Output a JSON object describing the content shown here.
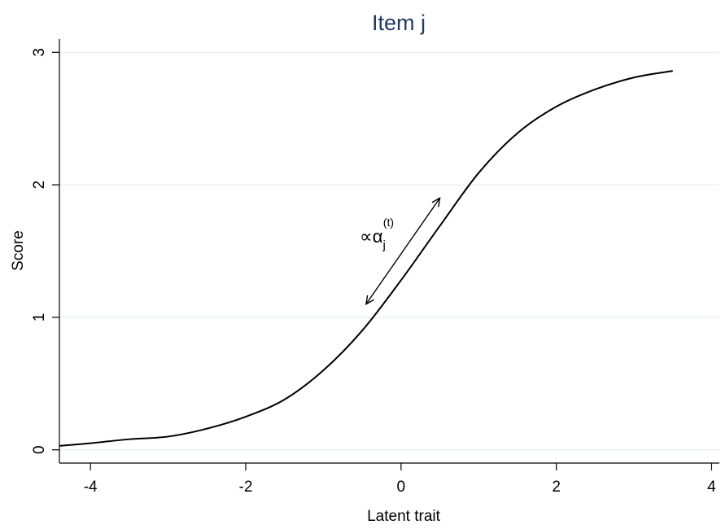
{
  "chart_data": {
    "type": "line",
    "title": "Item j",
    "xlabel": "Latent trait",
    "ylabel": "Score",
    "xlim": [
      -4.4,
      4.1
    ],
    "ylim": [
      -0.1,
      3.1
    ],
    "x_ticks": [
      "-4",
      "-2",
      "0",
      "2",
      "4"
    ],
    "y_ticks": [
      "0",
      "1",
      "2",
      "3"
    ],
    "grid": "horizontal",
    "series": [
      {
        "x": [
          -4.4,
          -4.0,
          -3.5,
          -3.0,
          -2.5,
          -2.0,
          -1.5,
          -1.0,
          -0.5,
          0.0,
          0.5,
          1.0,
          1.5,
          2.0,
          2.5,
          3.0,
          3.5
        ],
        "y": [
          0.03,
          0.05,
          0.08,
          0.1,
          0.16,
          0.25,
          0.38,
          0.6,
          0.9,
          1.28,
          1.69,
          2.09,
          2.39,
          2.59,
          2.72,
          2.81,
          2.86
        ]
      }
    ],
    "annotations": [
      {
        "text_main": "∝α",
        "text_sub": "j",
        "text_sup": "(t)",
        "arrow_from": [
          -0.45,
          1.1
        ],
        "arrow_to": [
          0.5,
          1.9
        ],
        "double_headed": true
      }
    ]
  }
}
